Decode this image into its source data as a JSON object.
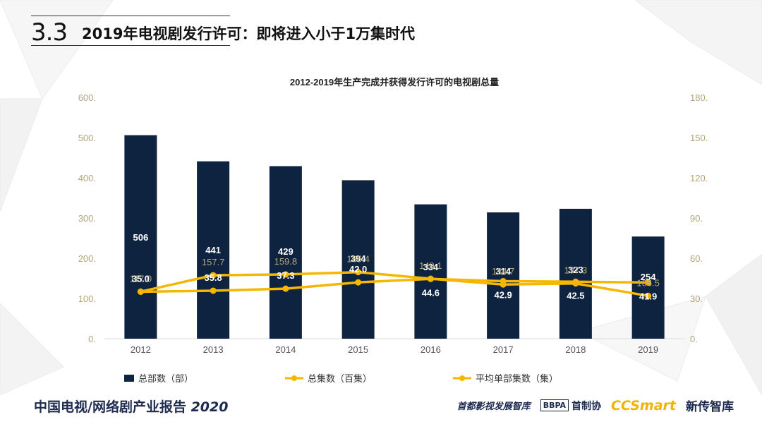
{
  "header": {
    "section_number": "3.3",
    "section_title": "2019年电视剧发行许可：即将进入小于1万集时代"
  },
  "footer": {
    "report_title": "中国电视/网络剧产业报告",
    "report_year": "2020",
    "org_1": "首都影视发展智库",
    "org_2_logo": "BBPA",
    "org_2": "首制协",
    "org_3_logo": "CCSmart",
    "org_3": "新传智库"
  },
  "chart_data": {
    "type": "bar",
    "title": "2012-2019年生产完成并获得发行许可的电视剧总量",
    "categories": [
      "2012",
      "2013",
      "2014",
      "2015",
      "2016",
      "2017",
      "2018",
      "2019"
    ],
    "series": [
      {
        "name": "总部数（部）",
        "type": "bar",
        "axis": "left",
        "color": "#0d2340",
        "values": [
          506,
          441,
          429,
          394,
          334,
          314,
          323,
          254
        ]
      },
      {
        "name": "总集数（百集）",
        "type": "line",
        "axis": "left",
        "color": "#f5b700",
        "values": [
          117.0,
          157.7,
          159.8,
          165.4,
          149.1,
          134.7,
          137.3,
          106.5
        ]
      },
      {
        "name": "平均单部集数（集）",
        "type": "line",
        "axis": "right",
        "color": "#f5b700",
        "values": [
          35.0,
          35.8,
          37.3,
          42.0,
          44.6,
          42.9,
          42.5,
          41.9
        ]
      }
    ],
    "y_left": {
      "ylim": [
        0,
        600
      ],
      "ticks": [
        "0.",
        "100.",
        "200.",
        "300.",
        "400.",
        "500.",
        "600."
      ]
    },
    "y_right": {
      "ylim": [
        0,
        180
      ],
      "ticks": [
        "0.",
        "30.",
        "60.",
        "90.",
        "120.",
        "150.",
        "180."
      ]
    },
    "grid": false,
    "legend_position": "bottom",
    "colors": {
      "tick_label": "#b5a578",
      "bar_label": "#ffffff",
      "line_label_dark": "#1d2b50",
      "line_label_gold": "#b5a578"
    }
  }
}
